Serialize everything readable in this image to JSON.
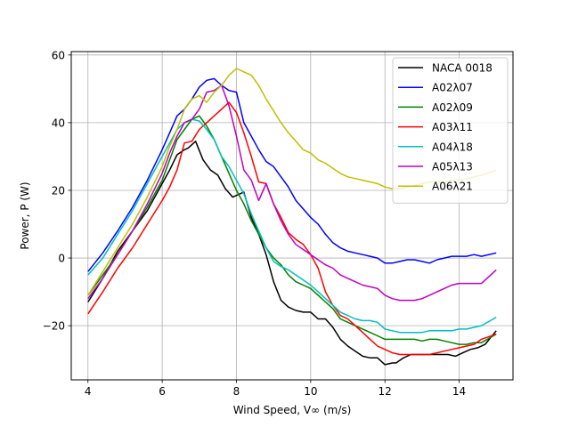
{
  "chart_data": {
    "type": "line",
    "title": "",
    "xlabel": "Wind Speed, V∞ (m/s)",
    "ylabel": "Power, P (W)",
    "xlim": [
      3.55,
      15.45
    ],
    "ylim": [
      -36,
      61
    ],
    "xticks": [
      4,
      6,
      8,
      10,
      12,
      14
    ],
    "yticks": [
      -20,
      0,
      20,
      40,
      60
    ],
    "xtick_labels": [
      "4",
      "6",
      "8",
      "10",
      "12",
      "14"
    ],
    "ytick_labels": [
      "−20",
      "0",
      "20",
      "40",
      "60"
    ],
    "grid": true,
    "legend_position": "top-right",
    "series": [
      {
        "name": "NACA 0018",
        "color": "#000000",
        "x": [
          4.0,
          4.4,
          4.8,
          5.2,
          5.6,
          6.0,
          6.2,
          6.4,
          6.6,
          6.7,
          6.9,
          7.1,
          7.3,
          7.5,
          7.7,
          7.9,
          8.0,
          8.2,
          8.4,
          8.6,
          8.8,
          9.0,
          9.2,
          9.4,
          9.6,
          9.8,
          10.0,
          10.2,
          10.4,
          10.6,
          10.8,
          11.0,
          11.2,
          11.4,
          11.6,
          11.8,
          12.0,
          12.2,
          12.3,
          12.5,
          12.7,
          12.9,
          13.1,
          13.3,
          13.5,
          13.7,
          13.9,
          14.1,
          14.3,
          14.5,
          14.7,
          15.0
        ],
        "y": [
          -13,
          -6,
          2,
          8,
          14,
          22,
          26,
          30.5,
          32,
          32.5,
          34.5,
          29,
          26,
          24.5,
          20.5,
          18,
          18.5,
          19.5,
          12,
          7,
          1,
          -7,
          -12.5,
          -14.5,
          -15.5,
          -16,
          -16,
          -18,
          -18,
          -20.5,
          -24,
          -26,
          -27.5,
          -29,
          -29.5,
          -29.5,
          -31.5,
          -31,
          -31,
          -29.5,
          -28.5,
          -28.5,
          -28.5,
          -28.5,
          -28.5,
          -28.5,
          -29,
          -28,
          -27,
          -26.5,
          -25.5,
          -21.5
        ]
      },
      {
        "name": "A02λ07",
        "color": "#0000ff",
        "x": [
          4.0,
          4.4,
          4.8,
          5.2,
          5.6,
          6.0,
          6.2,
          6.4,
          6.6,
          6.8,
          7.0,
          7.2,
          7.4,
          7.6,
          7.8,
          8.0,
          8.2,
          8.4,
          8.6,
          8.8,
          9.0,
          9.2,
          9.4,
          9.6,
          9.8,
          10.0,
          10.2,
          10.4,
          10.6,
          10.8,
          11.0,
          11.2,
          11.4,
          11.6,
          11.8,
          12.0,
          12.2,
          12.4,
          12.6,
          12.8,
          13.0,
          13.2,
          13.4,
          13.6,
          13.8,
          14.0,
          14.2,
          14.4,
          14.6,
          15.0
        ],
        "y": [
          -4,
          1.5,
          8,
          15,
          23,
          32,
          37,
          42,
          44,
          47,
          50.5,
          52.5,
          53,
          51,
          49.5,
          49,
          40,
          36,
          32,
          28.5,
          27,
          24,
          21,
          17,
          14.5,
          12,
          10,
          7,
          4.5,
          3,
          2,
          1.5,
          1,
          0.5,
          0,
          -1.5,
          -1.5,
          -1,
          -0.5,
          -0.5,
          -1,
          -1.5,
          -0.5,
          0,
          0.5,
          0.5,
          0.5,
          1,
          0.5,
          1.5
        ]
      },
      {
        "name": "A02λ09",
        "color": "#008000",
        "x": [
          4.0,
          4.4,
          4.8,
          5.2,
          5.6,
          6.0,
          6.2,
          6.4,
          6.6,
          6.8,
          7.0,
          7.2,
          7.4,
          7.6,
          7.8,
          8.0,
          8.2,
          8.4,
          8.6,
          8.8,
          9.0,
          9.2,
          9.4,
          9.6,
          9.8,
          10.0,
          10.2,
          10.4,
          10.6,
          10.8,
          11.0,
          11.2,
          11.4,
          11.6,
          11.8,
          12.0,
          12.2,
          12.4,
          12.6,
          12.8,
          13.0,
          13.2,
          13.4,
          13.6,
          13.8,
          14.0,
          14.2,
          14.4,
          14.6,
          15.0
        ],
        "y": [
          -11,
          -5,
          1,
          8,
          15,
          23,
          29,
          35,
          38,
          41,
          42,
          39,
          35,
          30,
          25,
          20,
          16,
          11,
          7,
          3,
          0,
          -2,
          -5,
          -7,
          -8,
          -9,
          -11,
          -13,
          -15,
          -18,
          -19,
          -20,
          -21,
          -22,
          -23,
          -24,
          -24,
          -24,
          -24,
          -24,
          -24.5,
          -24,
          -24,
          -24.5,
          -25,
          -25.5,
          -25.5,
          -25,
          -25,
          -22.5
        ]
      },
      {
        "name": "A03λ11",
        "color": "#ff0000",
        "x": [
          4.0,
          4.4,
          4.8,
          5.2,
          5.6,
          6.0,
          6.2,
          6.4,
          6.6,
          6.8,
          7.0,
          7.2,
          7.4,
          7.6,
          7.8,
          8.0,
          8.2,
          8.4,
          8.6,
          8.8,
          9.0,
          9.2,
          9.4,
          9.6,
          9.8,
          10.0,
          10.2,
          10.4,
          10.6,
          10.8,
          11.0,
          11.2,
          11.4,
          11.6,
          11.8,
          12.0,
          12.2,
          12.4,
          12.6,
          12.8,
          13.0,
          13.2,
          13.4,
          13.6,
          13.8,
          14.0,
          14.2,
          14.4,
          14.6,
          15.0
        ],
        "y": [
          -16.5,
          -10,
          -3,
          3,
          10,
          17,
          21,
          26,
          34,
          34.5,
          38,
          40,
          42,
          44,
          46,
          43,
          37,
          30,
          22.5,
          22,
          16,
          12,
          7.5,
          5.5,
          4,
          1,
          -3,
          -10,
          -14,
          -17,
          -18,
          -20,
          -22,
          -24,
          -26,
          -27,
          -28,
          -28.5,
          -28.5,
          -28.5,
          -28.5,
          -28.5,
          -28,
          -27.5,
          -27,
          -26.5,
          -26,
          -25.5,
          -24,
          -22.5
        ]
      },
      {
        "name": "A04λ18",
        "color": "#00bfbf",
        "x": [
          4.0,
          4.4,
          4.8,
          5.2,
          5.6,
          6.0,
          6.2,
          6.4,
          6.6,
          6.8,
          7.0,
          7.2,
          7.4,
          7.6,
          7.8,
          8.0,
          8.2,
          8.4,
          8.6,
          8.8,
          9.0,
          9.2,
          9.4,
          9.6,
          9.8,
          10.0,
          10.2,
          10.4,
          10.6,
          10.8,
          11.0,
          11.2,
          11.4,
          11.6,
          11.8,
          12.0,
          12.2,
          12.4,
          12.6,
          12.8,
          13.0,
          13.2,
          13.4,
          13.6,
          13.8,
          14.0,
          14.2,
          14.4,
          14.6,
          15.0
        ],
        "y": [
          -5,
          0,
          7,
          14,
          22,
          30,
          34,
          38,
          40,
          41,
          40.5,
          38,
          35,
          30,
          27,
          23,
          19,
          13,
          8,
          3,
          -1,
          -2.5,
          -3.5,
          -5,
          -6.5,
          -8,
          -10,
          -12,
          -14,
          -16,
          -17,
          -18,
          -18.5,
          -18.5,
          -19,
          -21,
          -21.5,
          -22,
          -22,
          -22,
          -22,
          -21.5,
          -21.5,
          -21.5,
          -21.5,
          -21,
          -21,
          -20.5,
          -20,
          -17.5
        ]
      },
      {
        "name": "A05λ13",
        "color": "#bf00bf",
        "x": [
          4.0,
          4.4,
          4.8,
          5.2,
          5.6,
          6.0,
          6.2,
          6.4,
          6.6,
          6.8,
          7.0,
          7.2,
          7.4,
          7.6,
          7.8,
          8.0,
          8.2,
          8.4,
          8.6,
          8.8,
          9.0,
          9.2,
          9.4,
          9.6,
          9.8,
          10.0,
          10.2,
          10.4,
          10.6,
          10.8,
          11.0,
          11.2,
          11.4,
          11.6,
          11.8,
          12.0,
          12.2,
          12.4,
          12.6,
          12.8,
          13.0,
          13.2,
          13.4,
          13.6,
          13.8,
          14.0,
          14.2,
          14.4,
          14.6,
          15.0
        ],
        "y": [
          -12,
          -6,
          1,
          8,
          16,
          25,
          31,
          36,
          40,
          41,
          44,
          49,
          49.5,
          51,
          45,
          36,
          26,
          23,
          17,
          22,
          16,
          11,
          7,
          4,
          2.5,
          1,
          -0.5,
          -2,
          -3,
          -5,
          -6,
          -7,
          -8,
          -8.5,
          -9,
          -11,
          -12,
          -12.5,
          -12.5,
          -12.5,
          -12,
          -11,
          -10,
          -9,
          -8,
          -7.5,
          -7.5,
          -7.5,
          -7.5,
          -3.5
        ]
      },
      {
        "name": "A06λ21",
        "color": "#bfbf00",
        "x": [
          4.0,
          4.4,
          4.8,
          5.2,
          5.6,
          6.0,
          6.2,
          6.4,
          6.6,
          6.8,
          7.0,
          7.2,
          7.4,
          7.6,
          7.8,
          8.0,
          8.2,
          8.4,
          8.6,
          8.8,
          9.0,
          9.2,
          9.4,
          9.6,
          9.8,
          10.0,
          10.2,
          10.4,
          10.6,
          10.8,
          11.0,
          11.2,
          11.4,
          11.6,
          11.8,
          12.0,
          12.2,
          12.4,
          12.6,
          12.8,
          13.0,
          13.2,
          13.4,
          13.6,
          13.8,
          14.0,
          14.2,
          14.4,
          14.6,
          15.0
        ],
        "y": [
          -11,
          -4,
          3,
          10,
          18,
          27,
          33,
          38,
          44,
          47,
          48,
          46,
          49,
          51,
          54,
          56,
          55,
          54,
          51,
          47,
          43.5,
          40,
          37,
          34.5,
          32,
          31,
          29,
          28,
          26.5,
          25,
          24,
          23.5,
          23,
          22.5,
          22,
          21,
          20.5,
          20.5,
          21,
          21.5,
          22,
          22.5,
          22.5,
          22.5,
          23,
          23,
          23.5,
          24,
          24.5,
          26
        ]
      }
    ]
  }
}
